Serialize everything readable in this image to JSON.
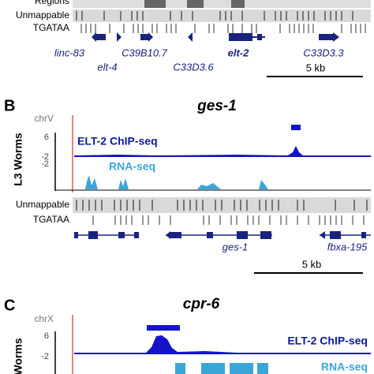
{
  "panel_a": {
    "regions_label": "Regions",
    "unmappable_label": "Unmappable",
    "motif_label": "TGATAA",
    "genes": [
      "linc-83",
      "elt-4",
      "C39B10.7",
      "C33D3.6",
      "elt-2",
      "C33D3.3"
    ],
    "scale_label": "5 kb"
  },
  "panel_b": {
    "letter": "B",
    "title": "ges-1",
    "chrom": "chrV",
    "tick_top": "6",
    "tick_chip_bottom": "-2",
    "tick_rna_bottom": "-2",
    "side_label": "L3 Worms",
    "chip_label": "ELT-2 ChIP-seq",
    "rna_label": "RNA-seq",
    "unmappable_label": "Unmappable",
    "motif_label": "TGATAA",
    "genes": [
      "ges-1",
      "fbxa-195"
    ],
    "scale_label": "5 kb"
  },
  "panel_c": {
    "letter": "C",
    "title": "cpr-6",
    "chrom": "chrX",
    "tick_top": "6",
    "tick_bottom": "-2",
    "side_label": "Worms",
    "chip_label": "ELT-2 ChIP-seq",
    "rna_label": "RNA-seq"
  }
}
